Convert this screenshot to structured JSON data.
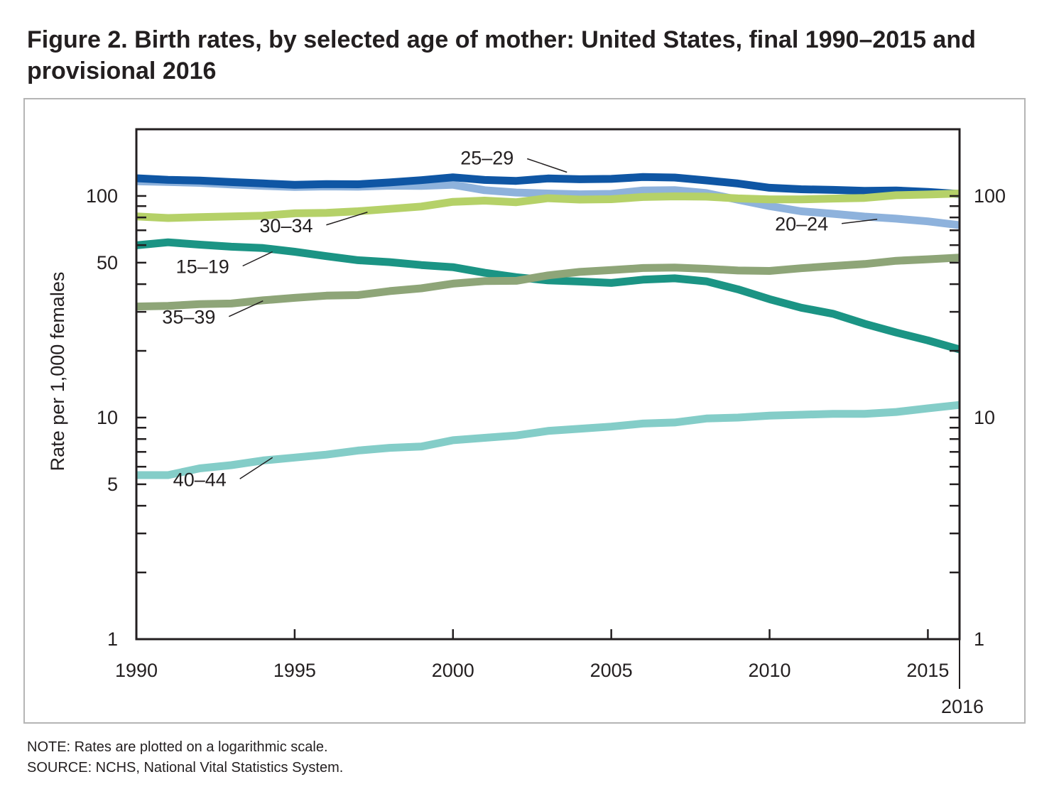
{
  "title": "Figure 2. Birth rates, by selected age of mother: United States, final 1990–2015 and provisional 2016",
  "note": "NOTE: Rates are plotted on a logarithmic scale.",
  "source": "SOURCE: NCHS, National Vital Statistics System.",
  "chart_data": {
    "type": "line",
    "title": "Figure 2. Birth rates, by selected age of mother: United States, final 1990–2015 and provisional 2016",
    "xlabel": "",
    "ylabel": "Rate per 1,000 females",
    "y_scale": "log",
    "ylim": [
      1,
      200
    ],
    "xlim": [
      1990,
      2016
    ],
    "grid": false,
    "legend": "inline labels",
    "x_ticks": [
      1990,
      1995,
      2000,
      2005,
      2010,
      2015
    ],
    "x_tick_labels": [
      "1990",
      "1995",
      "2000",
      "2005",
      "2010",
      "2015"
    ],
    "x_extra_label": "2016",
    "y_tick_labels": [
      {
        "value": 1,
        "label": "1"
      },
      {
        "value": 5,
        "label": "5"
      },
      {
        "value": 10,
        "label": "10"
      },
      {
        "value": 50,
        "label": "50"
      },
      {
        "value": 100,
        "label": "100"
      }
    ],
    "right_tick_labels": [
      {
        "value": 1,
        "label": "1"
      },
      {
        "value": 10,
        "label": "10"
      },
      {
        "value": 100,
        "label": "100"
      }
    ],
    "x": [
      1990,
      1991,
      1992,
      1993,
      1994,
      1995,
      1996,
      1997,
      1998,
      1999,
      2000,
      2001,
      2002,
      2003,
      2004,
      2005,
      2006,
      2007,
      2008,
      2009,
      2010,
      2011,
      2012,
      2013,
      2014,
      2015,
      2016
    ],
    "series": [
      {
        "name": "15–19",
        "color": "#1b9484",
        "values": [
          59.9,
          61.8,
          60.3,
          59.0,
          58.2,
          56.0,
          53.5,
          51.3,
          50.3,
          48.8,
          47.7,
          45.0,
          43.0,
          41.6,
          41.1,
          40.5,
          41.9,
          42.5,
          41.2,
          37.9,
          34.2,
          31.3,
          29.4,
          26.5,
          24.2,
          22.3,
          20.3
        ],
        "label_anchor": {
          "x": 1994.3,
          "y": 56.0
        }
      },
      {
        "name": "20–24",
        "color": "#8eb2dc",
        "values": [
          116.5,
          115.7,
          114.6,
          112.6,
          111.1,
          109.8,
          110.4,
          110.1,
          111.2,
          111.0,
          112.3,
          106.2,
          103.6,
          102.6,
          101.7,
          102.2,
          105.9,
          106.3,
          103.0,
          96.2,
          90.0,
          85.3,
          83.1,
          80.7,
          79.0,
          76.8,
          73.8
        ],
        "label_anchor": {
          "x": 2013.4,
          "y": 78.5
        }
      },
      {
        "name": "25–29",
        "color": "#0f56a4",
        "values": [
          120.2,
          118.2,
          117.4,
          115.5,
          113.9,
          112.2,
          113.1,
          112.9,
          115.1,
          117.8,
          121.4,
          118.1,
          117.0,
          119.9,
          119.0,
          119.4,
          121.7,
          121.1,
          117.6,
          113.8,
          108.9,
          107.2,
          106.5,
          105.5,
          105.8,
          104.3,
          102.1
        ],
        "label_anchor": {
          "x": 2003.6,
          "y": 128.0
        }
      },
      {
        "name": "30–34",
        "color": "#b5d168",
        "values": [
          80.8,
          79.5,
          80.2,
          80.8,
          81.5,
          83.5,
          83.9,
          85.3,
          87.4,
          89.6,
          94.1,
          95.3,
          93.7,
          97.7,
          96.3,
          96.7,
          98.9,
          99.6,
          99.3,
          97.5,
          96.5,
          96.5,
          97.3,
          98.0,
          100.8,
          101.5,
          102.6
        ],
        "label_anchor": {
          "x": 1997.3,
          "y": 84.5
        }
      },
      {
        "name": "35–39",
        "color": "#8ea578",
        "values": [
          31.7,
          31.9,
          32.5,
          32.7,
          33.8,
          34.7,
          35.5,
          35.7,
          37.2,
          38.3,
          40.2,
          41.3,
          41.4,
          43.8,
          45.4,
          46.3,
          47.3,
          47.5,
          46.9,
          46.1,
          45.9,
          47.2,
          48.3,
          49.3,
          51.0,
          51.8,
          52.7
        ],
        "label_anchor": {
          "x": 1994.0,
          "y": 33.6
        }
      },
      {
        "name": "40–44",
        "color": "#84cdc8",
        "values": [
          5.5,
          5.5,
          5.9,
          6.1,
          6.4,
          6.6,
          6.8,
          7.1,
          7.3,
          7.4,
          7.9,
          8.1,
          8.3,
          8.7,
          8.9,
          9.1,
          9.4,
          9.5,
          9.9,
          10.0,
          10.2,
          10.3,
          10.4,
          10.4,
          10.6,
          11.0,
          11.4
        ],
        "label_anchor": {
          "x": 1994.3,
          "y": 6.6
        }
      }
    ]
  }
}
